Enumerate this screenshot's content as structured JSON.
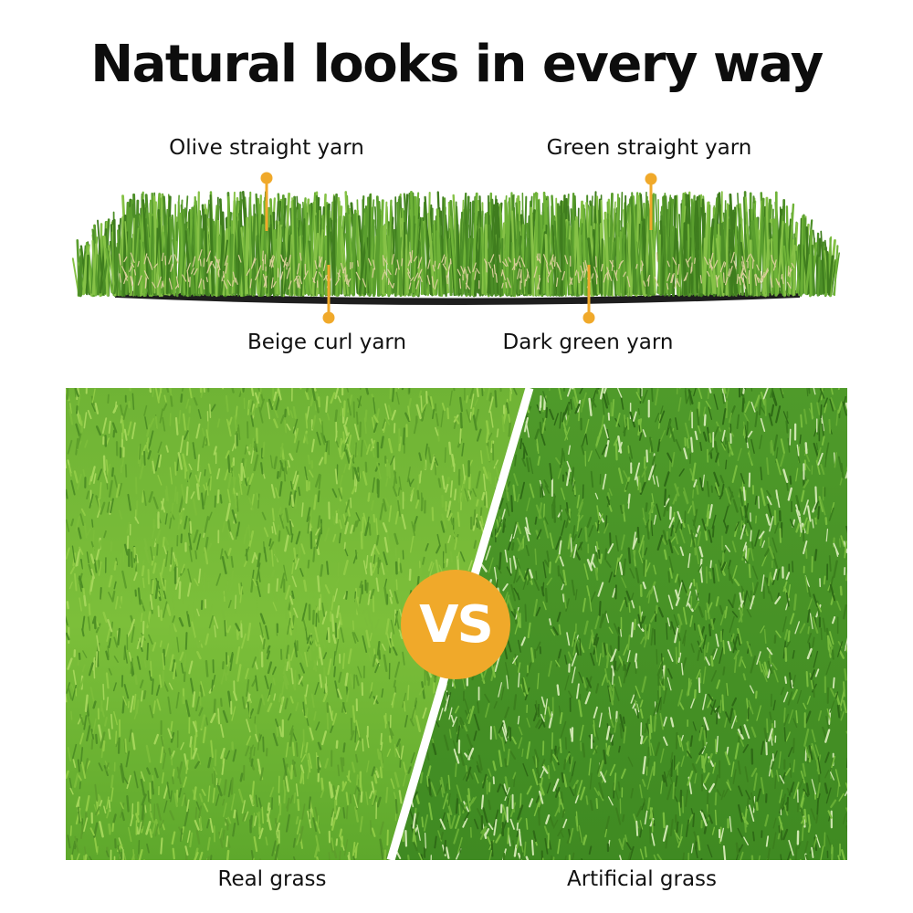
{
  "title": "Natural looks in every way",
  "callouts": {
    "olive": "Olive straight yarn",
    "green": "Green straight yarn",
    "beige": "Beige curl yarn",
    "dark": "Dark green yarn"
  },
  "comparison": {
    "badge": "VS",
    "left_label": "Real grass",
    "right_label": "Artificial grass"
  },
  "colors": {
    "accent": "#f0a92a",
    "grass_light": "#7cbf3a",
    "grass_dark": "#3f7d1e",
    "backing": "#1e1e1e"
  }
}
